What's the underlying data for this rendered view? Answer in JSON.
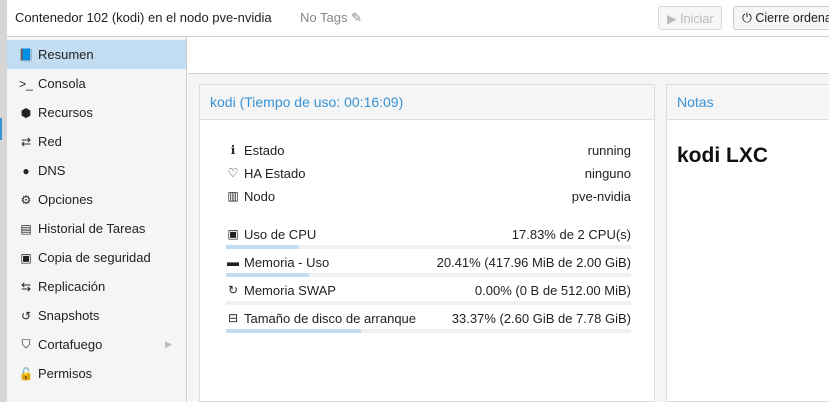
{
  "header": {
    "title": "Contenedor 102 (kodi) en el nodo pve-nvidia",
    "tags": "No Tags",
    "start_label": "Iniciar",
    "shutdown_label": "Cierre ordenado"
  },
  "sidebar": {
    "items": [
      {
        "label": "Resumen",
        "icon": "book-icon",
        "glyph": "📘",
        "active": true
      },
      {
        "label": "Consola",
        "icon": "terminal-icon",
        "glyph": ">_"
      },
      {
        "label": "Recursos",
        "icon": "cube-icon",
        "glyph": "⬢"
      },
      {
        "label": "Red",
        "icon": "exchange-icon",
        "glyph": "⇄"
      },
      {
        "label": "DNS",
        "icon": "globe-icon",
        "glyph": "●"
      },
      {
        "label": "Opciones",
        "icon": "gear-icon",
        "glyph": "⚙"
      },
      {
        "label": "Historial de Tareas",
        "icon": "list-icon",
        "glyph": "▤"
      },
      {
        "label": "Copia de seguridad",
        "icon": "floppy-icon",
        "glyph": "▣"
      },
      {
        "label": "Replicación",
        "icon": "retweet-icon",
        "glyph": "⇆"
      },
      {
        "label": "Snapshots",
        "icon": "history-icon",
        "glyph": "↺"
      },
      {
        "label": "Cortafuego",
        "icon": "shield-icon",
        "glyph": "⛉",
        "expandable": true
      },
      {
        "label": "Permisos",
        "icon": "unlock-icon",
        "glyph": "🔓"
      }
    ]
  },
  "status": {
    "title": "kodi (Tiempo de uso: 00:16:09)",
    "info": [
      {
        "label": "Estado",
        "value": "running",
        "icon": "info-icon",
        "glyph": "ℹ"
      },
      {
        "label": "HA Estado",
        "value": "ninguno",
        "icon": "heartbeat-icon",
        "glyph": "♡"
      },
      {
        "label": "Nodo",
        "value": "pve-nvidia",
        "icon": "building-icon",
        "glyph": "▥"
      }
    ],
    "usage": [
      {
        "label": "Uso de CPU",
        "value": "17.83% de 2 CPU(s)",
        "percent": 17.83,
        "icon": "cpu-icon",
        "glyph": "▣"
      },
      {
        "label": "Memoria - Uso",
        "value": "20.41% (417.96 MiB de 2.00 GiB)",
        "percent": 20.41,
        "icon": "memory-icon",
        "glyph": "▬"
      },
      {
        "label": "Memoria SWAP",
        "value": "0.00% (0 B de 512.00 MiB)",
        "percent": 0,
        "icon": "refresh-icon",
        "glyph": "↻"
      },
      {
        "label": "Tamaño de disco de arranque",
        "value": "33.37% (2.60 GiB de 7.78 GiB)",
        "percent": 33.37,
        "icon": "hdd-icon",
        "glyph": "⊟"
      }
    ]
  },
  "notes": {
    "title": "Notas",
    "content": "kodi LXC"
  }
}
